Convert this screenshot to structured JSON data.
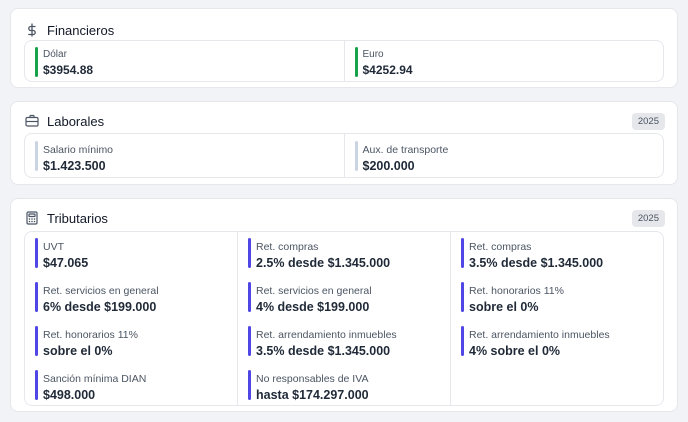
{
  "colors": {
    "green": "#16a34a",
    "gray": "#cbd5e1",
    "purple": "#4f46e5"
  },
  "financieros": {
    "title": "Financieros",
    "icon": "dollar-icon",
    "items": [
      {
        "label": "Dólar",
        "value": "$3954.88"
      },
      {
        "label": "Euro",
        "value": "$4252.94"
      }
    ]
  },
  "laborales": {
    "title": "Laborales",
    "icon": "briefcase-icon",
    "badge": "2025",
    "items": [
      {
        "label": "Salario mínimo",
        "value": "$1.423.500"
      },
      {
        "label": "Aux. de transporte",
        "value": "$200.000"
      }
    ]
  },
  "tributarios": {
    "title": "Tributarios",
    "icon": "calculator-icon",
    "badge": "2025",
    "columns": [
      [
        {
          "label": "UVT",
          "value": "$47.065"
        },
        {
          "label": "Ret. servicios en general",
          "value": "6% desde $199.000"
        },
        {
          "label": "Ret. honorarios 11%",
          "value": "sobre el 0%"
        },
        {
          "label": "Sanción mínima DIAN",
          "value": "$498.000"
        }
      ],
      [
        {
          "label": "Ret. compras",
          "value": "2.5% desde $1.345.000"
        },
        {
          "label": "Ret. servicios en general",
          "value": "4% desde $199.000"
        },
        {
          "label": "Ret. arrendamiento inmuebles",
          "value": "3.5% desde $1.345.000"
        },
        {
          "label": "No responsables de IVA",
          "value": "hasta $174.297.000"
        }
      ],
      [
        {
          "label": "Ret. compras",
          "value": "3.5% desde $1.345.000"
        },
        {
          "label": "Ret. honorarios 11%",
          "value": "sobre el 0%"
        },
        {
          "label": "Ret. arrendamiento inmuebles",
          "value": "4% sobre el 0%"
        }
      ]
    ]
  }
}
